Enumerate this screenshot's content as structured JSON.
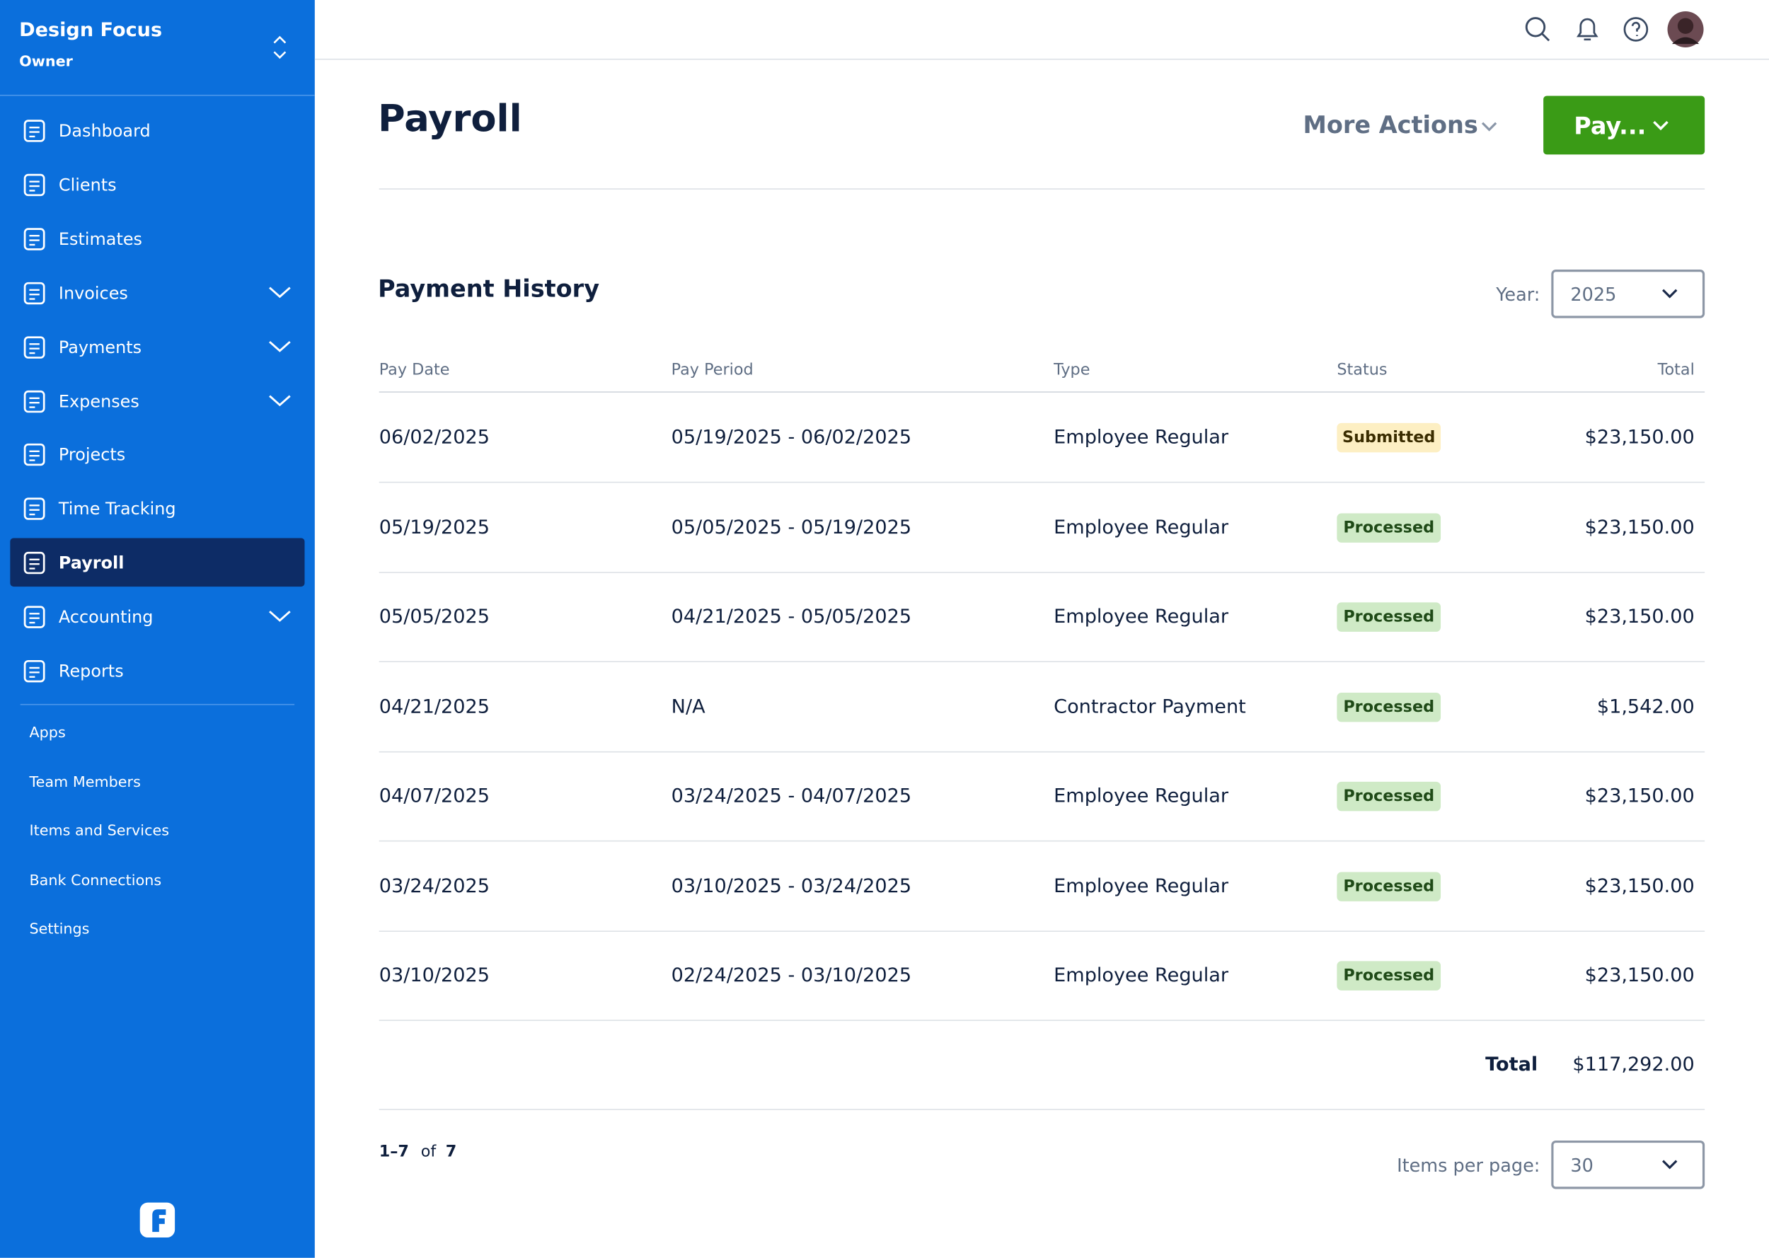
{
  "sidebar": {
    "company": "Design Focus",
    "role": "Owner",
    "nav": [
      {
        "label": "Dashboard",
        "expandable": false,
        "active": false
      },
      {
        "label": "Clients",
        "expandable": false,
        "active": false
      },
      {
        "label": "Estimates",
        "expandable": false,
        "active": false
      },
      {
        "label": "Invoices",
        "expandable": true,
        "active": false
      },
      {
        "label": "Payments",
        "expandable": true,
        "active": false
      },
      {
        "label": "Expenses",
        "expandable": true,
        "active": false
      },
      {
        "label": "Projects",
        "expandable": false,
        "active": false
      },
      {
        "label": "Time Tracking",
        "expandable": false,
        "active": false
      },
      {
        "label": "Payroll",
        "expandable": false,
        "active": true
      },
      {
        "label": "Accounting",
        "expandable": true,
        "active": false
      },
      {
        "label": "Reports",
        "expandable": false,
        "active": false
      }
    ],
    "secondary": [
      "Apps",
      "Team Members",
      "Items and Services",
      "Bank Connections",
      "Settings"
    ]
  },
  "header": {
    "title": "Payroll",
    "more_actions": "More Actions",
    "pay_button": "Pay..."
  },
  "section": {
    "title": "Payment History",
    "year_label": "Year:",
    "year": "2025"
  },
  "table": {
    "columns": [
      "Pay Date",
      "Pay Period",
      "Type",
      "Status",
      "Total"
    ],
    "rows": [
      [
        "06/02/2025",
        "05/19/2025 - 06/02/2025",
        "Employee Regular",
        "Submitted",
        "$23,150.00"
      ],
      [
        "05/19/2025",
        "05/05/2025 - 05/19/2025",
        "Employee Regular",
        "Processed",
        "$23,150.00"
      ],
      [
        "05/05/2025",
        "04/21/2025 - 05/05/2025",
        "Employee Regular",
        "Processed",
        "$23,150.00"
      ],
      [
        "04/21/2025",
        "N/A",
        "Contractor Payment",
        "Processed",
        "$1,542.00"
      ],
      [
        "04/07/2025",
        "03/24/2025 - 04/07/2025",
        "Employee Regular",
        "Processed",
        "$23,150.00"
      ],
      [
        "03/24/2025",
        "03/10/2025 - 03/24/2025",
        "Employee Regular",
        "Processed",
        "$23,150.00"
      ],
      [
        "03/10/2025",
        "02/24/2025 - 03/10/2025",
        "Employee Regular",
        "Processed",
        "$23,150.00"
      ]
    ],
    "total_label": "Total",
    "total": "$117,292.00"
  },
  "pagination": {
    "range": "1–7",
    "of": "of",
    "count": "7",
    "per_page_label": "Items per page:",
    "per_page": "30"
  }
}
